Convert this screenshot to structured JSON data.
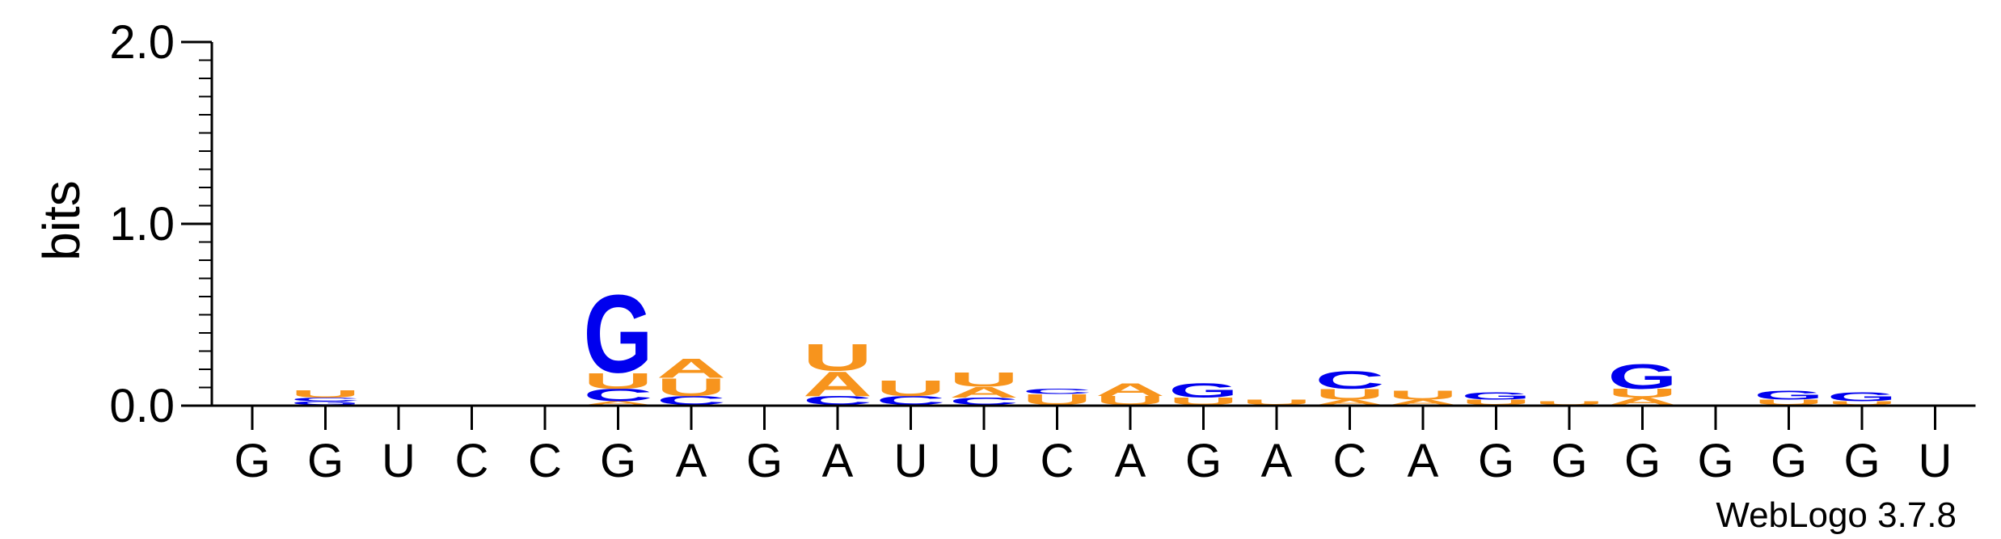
{
  "chart_data": {
    "type": "sequence-logo",
    "ylabel": "bits",
    "ylim": [
      0,
      2
    ],
    "yticks": [
      {
        "value": 0,
        "label": "0.0"
      },
      {
        "value": 1,
        "label": "1.0"
      },
      {
        "value": 2,
        "label": "2.0"
      }
    ],
    "x_labels": [
      "G",
      "G",
      "U",
      "C",
      "C",
      "G",
      "A",
      "G",
      "A",
      "U",
      "U",
      "C",
      "A",
      "G",
      "A",
      "C",
      "A",
      "G",
      "G",
      "G",
      "G",
      "G",
      "G",
      "U"
    ],
    "colors": {
      "A": "#f7941d",
      "U": "#f7941d",
      "G": "#0000ee",
      "C": "#0000ee"
    },
    "positions": [
      [],
      [
        {
          "base": "G",
          "bits": 0.02
        },
        {
          "base": "C",
          "bits": 0.02
        },
        {
          "base": "U",
          "bits": 0.04
        }
      ],
      [],
      [],
      [],
      [
        {
          "base": "A",
          "bits": 0.02
        },
        {
          "base": "C",
          "bits": 0.07
        },
        {
          "base": "U",
          "bits": 0.09
        },
        {
          "base": "G",
          "bits": 0.44
        }
      ],
      [
        {
          "base": "C",
          "bits": 0.05
        },
        {
          "base": "U",
          "bits": 0.1
        },
        {
          "base": "A",
          "bits": 0.11
        }
      ],
      [],
      [
        {
          "base": "C",
          "bits": 0.05
        },
        {
          "base": "A",
          "bits": 0.14
        },
        {
          "base": "U",
          "bits": 0.15
        }
      ],
      [
        {
          "base": "C",
          "bits": 0.05
        },
        {
          "base": "U",
          "bits": 0.09
        }
      ],
      [
        {
          "base": "C",
          "bits": 0.04
        },
        {
          "base": "A",
          "bits": 0.06
        },
        {
          "base": "U",
          "bits": 0.08
        }
      ],
      [
        {
          "base": "U",
          "bits": 0.06
        },
        {
          "base": "C",
          "bits": 0.03
        }
      ],
      [
        {
          "base": "U",
          "bits": 0.05
        },
        {
          "base": "A",
          "bits": 0.07
        }
      ],
      [
        {
          "base": "U",
          "bits": 0.04
        },
        {
          "base": "G",
          "bits": 0.08
        }
      ],
      [
        {
          "base": "U",
          "bits": 0.03
        }
      ],
      [
        {
          "base": "A",
          "bits": 0.03
        },
        {
          "base": "U",
          "bits": 0.06
        },
        {
          "base": "C",
          "bits": 0.1
        }
      ],
      [
        {
          "base": "A",
          "bits": 0.03
        },
        {
          "base": "U",
          "bits": 0.05
        }
      ],
      [
        {
          "base": "U",
          "bits": 0.03
        },
        {
          "base": "G",
          "bits": 0.04
        }
      ],
      [
        {
          "base": "U",
          "bits": 0.02
        }
      ],
      [
        {
          "base": "A",
          "bits": 0.04
        },
        {
          "base": "U",
          "bits": 0.05
        },
        {
          "base": "G",
          "bits": 0.14
        }
      ],
      [],
      [
        {
          "base": "U",
          "bits": 0.03
        },
        {
          "base": "G",
          "bits": 0.05
        }
      ],
      [
        {
          "base": "U",
          "bits": 0.02
        },
        {
          "base": "G",
          "bits": 0.05
        }
      ],
      []
    ]
  },
  "footer": {
    "credit": "WebLogo 3.7.8"
  }
}
